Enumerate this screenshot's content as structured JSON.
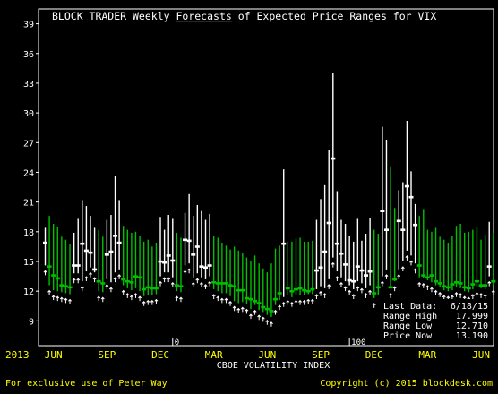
{
  "chart_data": {
    "type": "range",
    "title_prefix": "BLOCK TRADER Weekly ",
    "title_link": "Forecasts",
    "title_suffix": " of Expected Price Ranges for VIX",
    "xlabel": "CBOE VOLATILITY INDEX",
    "ylim": [
      6.5,
      40.5
    ],
    "yticks": [
      9,
      12,
      15,
      18,
      21,
      24,
      27,
      30,
      33,
      36,
      39
    ],
    "year_start_label": "2013",
    "month_labels": [
      {
        "label": "JUN",
        "week": 2
      },
      {
        "label": "SEP",
        "week": 15
      },
      {
        "label": "DEC",
        "week": 28
      },
      {
        "label": "MAR",
        "week": 41
      },
      {
        "label": "JUN",
        "week": 54
      },
      {
        "label": "SEP",
        "week": 67
      },
      {
        "label": "DEC",
        "week": 80
      },
      {
        "label": "MAR",
        "week": 93
      },
      {
        "label": "JUN",
        "week": 106
      }
    ],
    "markers": [
      {
        "label": "0",
        "week": 31
      },
      {
        "label": "100",
        "week": 74
      }
    ],
    "series": [
      {
        "name": "up",
        "color": "#00c000",
        "points": [
          [
            1,
            19.6,
            12.6,
            14.5
          ],
          [
            2,
            18.8,
            12.1,
            13.6
          ],
          [
            3,
            18.5,
            12.0,
            13.3
          ],
          [
            4,
            17.5,
            11.9,
            12.6
          ],
          [
            5,
            17.2,
            11.8,
            12.5
          ],
          [
            6,
            16.8,
            11.7,
            12.4
          ],
          [
            13,
            18.2,
            12.0,
            13.0
          ],
          [
            14,
            17.5,
            11.9,
            12.8
          ],
          [
            19,
            18.6,
            12.6,
            13.2
          ],
          [
            20,
            18.2,
            12.3,
            13.0
          ],
          [
            21,
            17.9,
            12.1,
            12.9
          ],
          [
            22,
            18.0,
            12.3,
            13.5
          ],
          [
            23,
            17.6,
            12.0,
            13.4
          ],
          [
            24,
            17.0,
            11.5,
            12.2
          ],
          [
            25,
            17.2,
            11.6,
            12.4
          ],
          [
            26,
            16.5,
            11.6,
            12.3
          ],
          [
            27,
            16.9,
            11.7,
            12.3
          ],
          [
            32,
            17.9,
            12.0,
            12.6
          ],
          [
            33,
            17.4,
            11.9,
            12.5
          ],
          [
            41,
            17.6,
            12.2,
            12.9
          ],
          [
            42,
            17.4,
            12.0,
            12.8
          ],
          [
            43,
            16.9,
            11.8,
            12.8
          ],
          [
            44,
            16.6,
            11.8,
            12.8
          ],
          [
            45,
            16.2,
            11.5,
            12.6
          ],
          [
            46,
            16.5,
            11.0,
            12.5
          ],
          [
            47,
            16.1,
            10.8,
            12.1
          ],
          [
            48,
            15.9,
            10.9,
            12.1
          ],
          [
            49,
            15.4,
            10.7,
            11.3
          ],
          [
            50,
            15.0,
            10.2,
            11.2
          ],
          [
            51,
            15.6,
            10.6,
            11.0
          ],
          [
            52,
            14.8,
            10.1,
            10.8
          ],
          [
            53,
            14.3,
            9.9,
            10.4
          ],
          [
            54,
            13.9,
            9.6,
            10.2
          ],
          [
            55,
            14.8,
            9.4,
            10.0
          ],
          [
            56,
            16.3,
            10.6,
            11.2
          ],
          [
            57,
            16.6,
            11.1,
            11.8
          ],
          [
            59,
            17.0,
            11.6,
            12.3
          ],
          [
            60,
            17.0,
            11.4,
            12.0
          ],
          [
            61,
            17.3,
            11.6,
            12.2
          ],
          [
            62,
            17.4,
            11.6,
            12.3
          ],
          [
            63,
            17.0,
            11.6,
            12.1
          ],
          [
            64,
            17.0,
            11.7,
            12.0
          ],
          [
            65,
            17.1,
            11.7,
            12.2
          ],
          [
            80,
            18.2,
            11.3,
            11.8
          ],
          [
            81,
            17.8,
            11.6,
            12.4
          ],
          [
            84,
            24.6,
            12.3,
            12.4
          ],
          [
            85,
            20.4,
            13.0,
            13.2
          ],
          [
            91,
            19.6,
            13.4,
            14.6
          ],
          [
            92,
            20.3,
            13.3,
            13.6
          ],
          [
            93,
            18.2,
            13.1,
            13.4
          ],
          [
            94,
            18.0,
            12.9,
            13.6
          ],
          [
            95,
            18.4,
            12.6,
            13.0
          ],
          [
            96,
            17.5,
            12.4,
            12.8
          ],
          [
            97,
            17.2,
            12.1,
            12.5
          ],
          [
            98,
            16.9,
            12.0,
            12.4
          ],
          [
            99,
            17.6,
            12.1,
            12.7
          ],
          [
            100,
            18.6,
            12.4,
            12.9
          ],
          [
            101,
            18.8,
            12.3,
            12.8
          ],
          [
            102,
            17.9,
            12.0,
            12.4
          ],
          [
            103,
            18.0,
            11.9,
            12.3
          ],
          [
            104,
            18.2,
            12.2,
            12.7
          ],
          [
            105,
            18.5,
            12.4,
            13.0
          ],
          [
            106,
            17.2,
            12.3,
            12.6
          ],
          [
            107,
            17.7,
            12.2,
            12.6
          ],
          [
            109,
            17.9,
            12.6,
            13.0
          ]
        ]
      },
      {
        "name": "down",
        "color": "#ffffff",
        "points": [
          [
            0,
            18.4,
            14.6,
            16.9
          ],
          [
            7,
            17.9,
            13.8,
            14.6
          ],
          [
            8,
            19.3,
            13.8,
            14.6
          ],
          [
            9,
            21.2,
            13.0,
            16.8
          ],
          [
            10,
            20.6,
            14.0,
            16.1
          ],
          [
            11,
            19.6,
            14.4,
            15.9
          ],
          [
            12,
            18.4,
            13.9,
            14.2
          ],
          [
            15,
            19.2,
            13.2,
            15.7
          ],
          [
            16,
            19.7,
            12.9,
            16.0
          ],
          [
            17,
            23.6,
            13.9,
            17.6
          ],
          [
            18,
            21.2,
            14.2,
            16.9
          ],
          [
            28,
            19.5,
            13.5,
            15.0
          ],
          [
            29,
            18.2,
            13.9,
            14.9
          ],
          [
            30,
            19.7,
            13.9,
            15.6
          ],
          [
            31,
            19.3,
            13.4,
            15.1
          ],
          [
            34,
            19.9,
            14.6,
            17.2
          ],
          [
            35,
            21.8,
            14.8,
            17.1
          ],
          [
            36,
            19.6,
            13.4,
            15.7
          ],
          [
            37,
            20.7,
            13.8,
            16.5
          ],
          [
            38,
            20.1,
            13.4,
            14.5
          ],
          [
            39,
            19.2,
            13.2,
            14.4
          ],
          [
            40,
            19.8,
            13.5,
            14.6
          ],
          [
            58,
            24.3,
            11.4,
            16.8
          ],
          [
            66,
            19.2,
            12.2,
            14.1
          ],
          [
            67,
            21.3,
            12.5,
            14.4
          ],
          [
            68,
            22.7,
            12.3,
            16.0
          ],
          [
            69,
            26.3,
            13.2,
            18.9
          ],
          [
            70,
            34.0,
            15.4,
            25.4
          ],
          [
            71,
            22.1,
            14.0,
            16.8
          ],
          [
            72,
            19.2,
            13.4,
            15.8
          ],
          [
            73,
            18.8,
            13.0,
            14.7
          ],
          [
            74,
            17.6,
            12.6,
            13.1
          ],
          [
            75,
            17.0,
            12.2,
            13.0
          ],
          [
            76,
            19.3,
            13.0,
            14.5
          ],
          [
            77,
            17.1,
            12.8,
            14.1
          ],
          [
            78,
            17.8,
            12.3,
            13.6
          ],
          [
            79,
            19.4,
            12.6,
            14.0
          ],
          [
            82,
            28.6,
            13.5,
            20.1
          ],
          [
            83,
            27.3,
            14.2,
            18.2
          ],
          [
            86,
            22.2,
            14.2,
            19.1
          ],
          [
            87,
            23.0,
            15.0,
            18.2
          ],
          [
            88,
            29.2,
            16.1,
            22.6
          ],
          [
            89,
            24.1,
            15.6,
            21.5
          ],
          [
            90,
            20.8,
            14.8,
            18.7
          ],
          [
            108,
            19.0,
            13.5,
            14.5
          ]
        ]
      }
    ],
    "info_lines": [
      {
        "label": "Last Data:",
        "value": "6/18/15"
      },
      {
        "label": "Range High",
        "value": "17.999"
      },
      {
        "label": "Range Low",
        "value": "12.710"
      },
      {
        "label": "Price Now",
        "value": "13.190"
      }
    ],
    "footer_left": "For exclusive use of Peter Way",
    "footer_right": "Copyright (c) 2015 blockdesk.com"
  }
}
